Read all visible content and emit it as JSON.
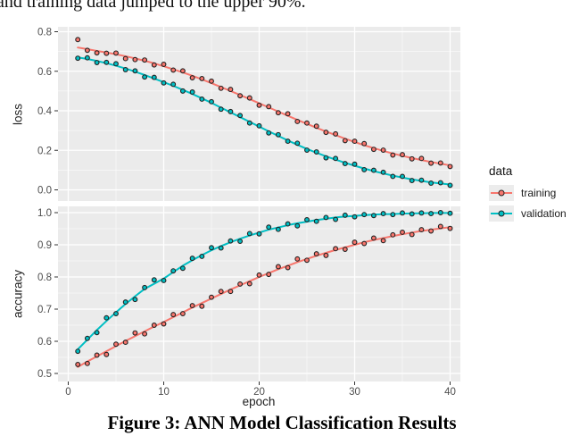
{
  "text": {
    "top_line": "and training data jumped to the upper 90%.",
    "caption": "Figure 3: ANN Model Classification Results"
  },
  "legend": {
    "title": "data",
    "items": [
      {
        "label": "training",
        "color": "#F8766D"
      },
      {
        "label": "validation",
        "color": "#00BFC4"
      }
    ]
  },
  "chart_data": {
    "type": "scatter",
    "subtype": "scatter-with-smooth-line, two stacked facet panels sharing x axis",
    "x_label": "epoch",
    "x": [
      1,
      2,
      3,
      4,
      5,
      6,
      7,
      8,
      9,
      10,
      11,
      12,
      13,
      14,
      15,
      16,
      17,
      18,
      19,
      20,
      21,
      22,
      23,
      24,
      25,
      26,
      27,
      28,
      29,
      30,
      31,
      32,
      33,
      34,
      35,
      36,
      37,
      38,
      39,
      40
    ],
    "x_tick_values": [
      0,
      10,
      20,
      30,
      40
    ],
    "x_tick_labels": [
      "0",
      "10",
      "20",
      "30",
      "40"
    ],
    "x_minor": [
      5,
      15,
      25,
      35
    ],
    "style": {
      "panel_bg": "#EBEBEB",
      "grid": "#FFFFFF",
      "tick_text": "#4D4D4D",
      "tick_mark": "#333333",
      "axis_title_color": "#1f1f1f",
      "point_stroke": "#222222"
    },
    "panels": [
      {
        "y_label": "loss",
        "y_tick_values": [
          0.0,
          0.2,
          0.4,
          0.6,
          0.8
        ],
        "y_tick_labels": [
          "0.0",
          "0.2",
          "0.4",
          "0.6",
          "0.8"
        ],
        "y_minor": [
          0.1,
          0.3,
          0.5,
          0.7
        ],
        "ylim": [
          0.0,
          0.8
        ],
        "series": [
          {
            "name": "training",
            "color": "#F8766D",
            "points": [
              0.76,
              0.706,
              0.693,
              0.691,
              0.692,
              0.664,
              0.659,
              0.657,
              0.632,
              0.635,
              0.606,
              0.602,
              0.567,
              0.563,
              0.55,
              0.514,
              0.508,
              0.476,
              0.465,
              0.428,
              0.421,
              0.39,
              0.385,
              0.346,
              0.338,
              0.322,
              0.291,
              0.283,
              0.249,
              0.246,
              0.234,
              0.205,
              0.201,
              0.176,
              0.178,
              0.157,
              0.159,
              0.135,
              0.136,
              0.118
            ],
            "trend": [
              0.72,
              0.712,
              0.703,
              0.695,
              0.686,
              0.676,
              0.665,
              0.653,
              0.64,
              0.625,
              0.61,
              0.594,
              0.577,
              0.559,
              0.54,
              0.52,
              0.5,
              0.48,
              0.459,
              0.438,
              0.417,
              0.396,
              0.375,
              0.354,
              0.334,
              0.314,
              0.295,
              0.277,
              0.259,
              0.242,
              0.226,
              0.211,
              0.197,
              0.184,
              0.172,
              0.161,
              0.151,
              0.141,
              0.132,
              0.124
            ]
          },
          {
            "name": "validation",
            "color": "#00BFC4",
            "points": [
              0.666,
              0.668,
              0.644,
              0.645,
              0.638,
              0.608,
              0.602,
              0.571,
              0.569,
              0.541,
              0.534,
              0.5,
              0.495,
              0.459,
              0.446,
              0.408,
              0.396,
              0.376,
              0.338,
              0.324,
              0.288,
              0.279,
              0.246,
              0.236,
              0.201,
              0.192,
              0.162,
              0.159,
              0.133,
              0.13,
              0.102,
              0.099,
              0.089,
              0.068,
              0.068,
              0.047,
              0.049,
              0.034,
              0.036,
              0.023
            ],
            "trend": [
              0.67,
              0.662,
              0.652,
              0.641,
              0.628,
              0.614,
              0.598,
              0.581,
              0.563,
              0.545,
              0.526,
              0.506,
              0.485,
              0.463,
              0.44,
              0.416,
              0.392,
              0.368,
              0.344,
              0.32,
              0.296,
              0.273,
              0.25,
              0.228,
              0.207,
              0.188,
              0.17,
              0.153,
              0.137,
              0.122,
              0.108,
              0.095,
              0.083,
              0.072,
              0.062,
              0.053,
              0.045,
              0.038,
              0.032,
              0.027
            ]
          }
        ]
      },
      {
        "y_label": "accuracy",
        "y_tick_values": [
          0.5,
          0.6,
          0.7,
          0.8,
          0.9,
          1.0
        ],
        "y_tick_labels": [
          "0.5",
          "0.6",
          "0.7",
          "0.8",
          "0.9",
          "1.0"
        ],
        "y_minor": [
          0.55,
          0.65,
          0.75,
          0.85,
          0.95
        ],
        "ylim": [
          0.5,
          1.0
        ],
        "series": [
          {
            "name": "training",
            "color": "#F8766D",
            "points": [
              0.528,
              0.531,
              0.557,
              0.559,
              0.591,
              0.597,
              0.626,
              0.623,
              0.65,
              0.654,
              0.683,
              0.686,
              0.711,
              0.709,
              0.737,
              0.755,
              0.755,
              0.778,
              0.779,
              0.806,
              0.808,
              0.832,
              0.829,
              0.856,
              0.852,
              0.872,
              0.867,
              0.888,
              0.886,
              0.908,
              0.904,
              0.921,
              0.913,
              0.931,
              0.939,
              0.932,
              0.947,
              0.943,
              0.957,
              0.951
            ],
            "trend": [
              0.52,
              0.537,
              0.553,
              0.569,
              0.585,
              0.601,
              0.616,
              0.631,
              0.646,
              0.66,
              0.675,
              0.69,
              0.705,
              0.719,
              0.733,
              0.747,
              0.761,
              0.774,
              0.787,
              0.8,
              0.812,
              0.824,
              0.835,
              0.846,
              0.856,
              0.866,
              0.875,
              0.884,
              0.892,
              0.9,
              0.908,
              0.915,
              0.921,
              0.927,
              0.933,
              0.938,
              0.943,
              0.947,
              0.951,
              0.955
            ]
          },
          {
            "name": "validation",
            "color": "#00BFC4",
            "points": [
              0.569,
              0.609,
              0.627,
              0.673,
              0.686,
              0.722,
              0.73,
              0.767,
              0.791,
              0.789,
              0.819,
              0.827,
              0.858,
              0.864,
              0.891,
              0.89,
              0.912,
              0.911,
              0.935,
              0.934,
              0.955,
              0.948,
              0.965,
              0.959,
              0.978,
              0.973,
              0.985,
              0.979,
              0.992,
              0.987,
              0.994,
              0.991,
              0.997,
              0.994,
              0.999,
              0.996,
              0.999,
              0.997,
              1.0,
              0.998
            ],
            "trend": [
              0.575,
              0.605,
              0.635,
              0.663,
              0.69,
              0.716,
              0.74,
              0.763,
              0.779,
              0.795,
              0.815,
              0.835,
              0.852,
              0.868,
              0.883,
              0.896,
              0.908,
              0.919,
              0.929,
              0.938,
              0.947,
              0.954,
              0.961,
              0.967,
              0.972,
              0.977,
              0.981,
              0.985,
              0.988,
              0.99,
              0.992,
              0.994,
              0.995,
              0.996,
              0.997,
              0.998,
              0.998,
              0.999,
              0.999,
              0.999
            ]
          }
        ]
      }
    ]
  }
}
